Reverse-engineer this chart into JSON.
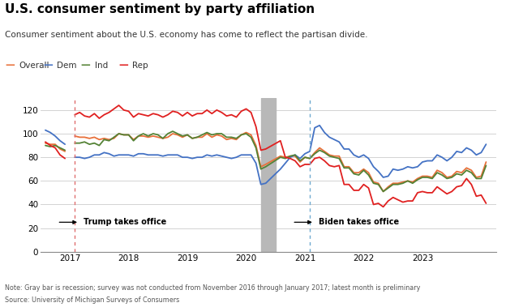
{
  "title": "U.S. consumer sentiment by party affiliation",
  "subtitle": "Consumer sentiment about the U.S. economy has come to reflect the partisan divide.",
  "note": "Note: Gray bar is recession; survey was not conducted from November 2016 through January 2017; latest month is preliminary",
  "source": "Source: University of Michigan Surveys of Consumers",
  "legend_labels": [
    "Overall",
    "Dem",
    "Ind",
    "Rep"
  ],
  "legend_colors": [
    "#e8703a",
    "#4472c4",
    "#548235",
    "#e02020"
  ],
  "overall_color": "#e8703a",
  "dem_color": "#4472c4",
  "ind_color": "#548235",
  "rep_color": "#e02020",
  "trump_line_x": 2017.083,
  "biden_line_x": 2021.083,
  "recession_start": 2020.25,
  "recession_end": 2020.5,
  "ylim": [
    0,
    130
  ],
  "yticks": [
    0,
    20,
    40,
    60,
    80,
    100,
    120
  ],
  "xlim": [
    2016.5,
    2024.25
  ],
  "background_color": "#ffffff",
  "grid_color": "#cccccc",
  "dates": [
    2016.583,
    2016.667,
    2016.75,
    2016.833,
    2016.917,
    2017.0,
    2017.083,
    2017.167,
    2017.25,
    2017.333,
    2017.417,
    2017.5,
    2017.583,
    2017.667,
    2017.75,
    2017.833,
    2017.917,
    2018.0,
    2018.083,
    2018.167,
    2018.25,
    2018.333,
    2018.417,
    2018.5,
    2018.583,
    2018.667,
    2018.75,
    2018.833,
    2018.917,
    2019.0,
    2019.083,
    2019.167,
    2019.25,
    2019.333,
    2019.417,
    2019.5,
    2019.583,
    2019.667,
    2019.75,
    2019.833,
    2019.917,
    2020.0,
    2020.083,
    2020.167,
    2020.25,
    2020.333,
    2020.583,
    2020.667,
    2020.75,
    2020.833,
    2020.917,
    2021.0,
    2021.083,
    2021.167,
    2021.25,
    2021.333,
    2021.417,
    2021.5,
    2021.583,
    2021.667,
    2021.75,
    2021.833,
    2021.917,
    2022.0,
    2022.083,
    2022.167,
    2022.25,
    2022.333,
    2022.417,
    2022.5,
    2022.583,
    2022.667,
    2022.75,
    2022.833,
    2022.917,
    2023.0,
    2023.083,
    2023.167,
    2023.25,
    2023.333,
    2023.417,
    2023.5,
    2023.583,
    2023.667,
    2023.75,
    2023.833,
    2023.917,
    2024.0,
    2024.083
  ],
  "overall": [
    92,
    91,
    91,
    87,
    85,
    null,
    98,
    97,
    97,
    96,
    97,
    95,
    96,
    95,
    96,
    100,
    99,
    99,
    95,
    98,
    98,
    97,
    98,
    97,
    96,
    97,
    100,
    99,
    97,
    99,
    96,
    97,
    97,
    100,
    97,
    99,
    98,
    95,
    96,
    95,
    99,
    101,
    99,
    90,
    72,
    74,
    81,
    80,
    81,
    81,
    76,
    80,
    79,
    84,
    88,
    85,
    82,
    81,
    81,
    72,
    72,
    67,
    67,
    70,
    67,
    59,
    58,
    51,
    55,
    58,
    58,
    59,
    60,
    59,
    62,
    64,
    64,
    63,
    69,
    67,
    63,
    64,
    68,
    67,
    71,
    69,
    63,
    64,
    76
  ],
  "dem": [
    103,
    101,
    98,
    94,
    91,
    null,
    80,
    80,
    79,
    80,
    82,
    82,
    84,
    83,
    81,
    82,
    82,
    82,
    81,
    83,
    83,
    82,
    82,
    82,
    81,
    82,
    82,
    82,
    80,
    80,
    79,
    80,
    80,
    82,
    81,
    82,
    81,
    80,
    79,
    80,
    82,
    82,
    82,
    75,
    57,
    58,
    70,
    75,
    80,
    82,
    79,
    83,
    85,
    105,
    107,
    101,
    97,
    95,
    93,
    87,
    87,
    82,
    80,
    82,
    79,
    72,
    68,
    63,
    64,
    70,
    69,
    70,
    72,
    71,
    72,
    76,
    77,
    77,
    82,
    80,
    77,
    80,
    85,
    84,
    88,
    86,
    82,
    84,
    91
  ],
  "ind": [
    90,
    89,
    90,
    88,
    86,
    null,
    92,
    92,
    93,
    91,
    92,
    90,
    95,
    94,
    97,
    100,
    99,
    99,
    94,
    98,
    100,
    98,
    100,
    99,
    96,
    100,
    102,
    100,
    98,
    99,
    96,
    97,
    99,
    101,
    99,
    100,
    100,
    97,
    97,
    96,
    99,
    100,
    97,
    88,
    70,
    72,
    80,
    79,
    81,
    82,
    77,
    80,
    79,
    83,
    86,
    84,
    81,
    80,
    79,
    71,
    71,
    66,
    65,
    69,
    65,
    58,
    57,
    51,
    54,
    57,
    57,
    58,
    60,
    58,
    61,
    63,
    63,
    62,
    67,
    65,
    62,
    63,
    66,
    65,
    69,
    67,
    62,
    62,
    73
  ],
  "rep": [
    93,
    90,
    88,
    82,
    79,
    null,
    116,
    118,
    115,
    114,
    117,
    113,
    116,
    118,
    121,
    124,
    120,
    119,
    114,
    117,
    116,
    115,
    117,
    116,
    114,
    116,
    119,
    118,
    115,
    118,
    115,
    117,
    117,
    120,
    117,
    120,
    118,
    115,
    116,
    114,
    119,
    121,
    118,
    106,
    86,
    87,
    94,
    80,
    79,
    77,
    72,
    74,
    74,
    79,
    80,
    77,
    73,
    72,
    73,
    57,
    57,
    52,
    52,
    57,
    54,
    40,
    41,
    38,
    43,
    46,
    44,
    42,
    43,
    43,
    50,
    51,
    50,
    50,
    55,
    52,
    49,
    51,
    55,
    56,
    62,
    57,
    47,
    48,
    41
  ]
}
